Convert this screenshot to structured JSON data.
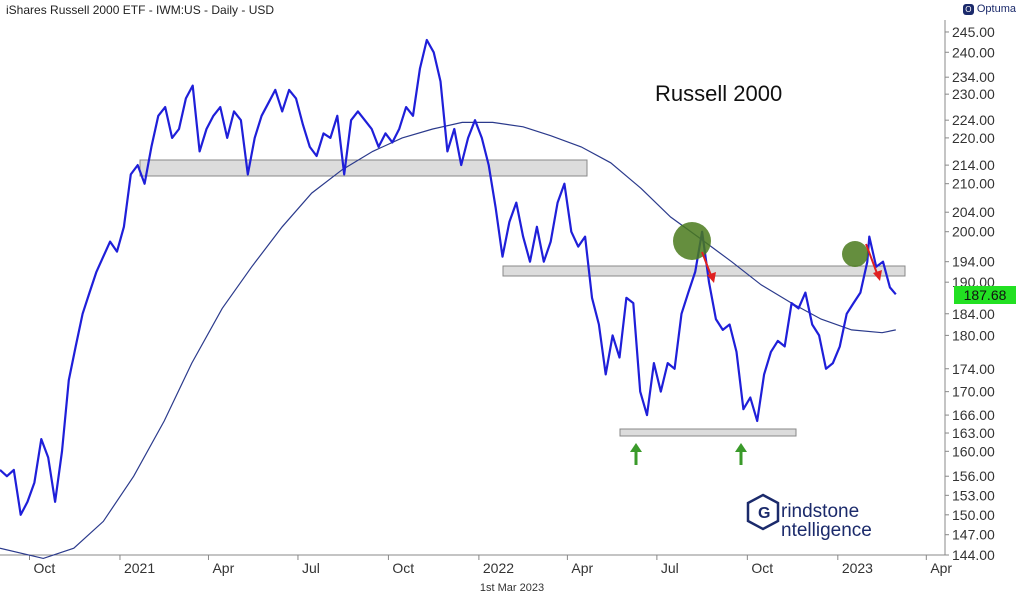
{
  "header": {
    "title": "iShares Russell 2000 ETF - IWM:US - Daily - USD",
    "logo_text": "Optuma"
  },
  "footer": {
    "date": "1st Mar 2023"
  },
  "brand": {
    "line1": "rindstone",
    "line2": "ntelligence"
  },
  "colors": {
    "price": "#1f1fd9",
    "ma": "#2b3a8c",
    "band_fill": "#dcdcdc",
    "band_stroke": "#888888",
    "circle": "#4a7a1c",
    "red_arrow": "#e02020",
    "green_arrow": "#3a9a2a",
    "last_bg": "#22e022"
  },
  "chart_data": {
    "type": "line",
    "annotation": "Russell 2000",
    "last_value": "187.68",
    "x_range": [
      "2020-09-01",
      "2023-04-20"
    ],
    "ylim": [
      144,
      248
    ],
    "y_ticks": [
      "245.00",
      "240.00",
      "234.00",
      "230.00",
      "224.00",
      "220.00",
      "214.00",
      "210.00",
      "204.00",
      "200.00",
      "194.00",
      "190.00",
      "184.00",
      "180.00",
      "174.00",
      "170.00",
      "166.00",
      "163.00",
      "160.00",
      "156.00",
      "153.00",
      "150.00",
      "147.00",
      "144.00"
    ],
    "x_ticks": [
      {
        "label": "Oct",
        "date": "2020-10-01"
      },
      {
        "label": "2021",
        "date": "2021-01-01"
      },
      {
        "label": "Apr",
        "date": "2021-04-01"
      },
      {
        "label": "Jul",
        "date": "2021-07-01"
      },
      {
        "label": "Oct",
        "date": "2021-10-01"
      },
      {
        "label": "2022",
        "date": "2022-01-01"
      },
      {
        "label": "Apr",
        "date": "2022-04-01"
      },
      {
        "label": "Jul",
        "date": "2022-07-01"
      },
      {
        "label": "Oct",
        "date": "2022-10-01"
      },
      {
        "label": "2023",
        "date": "2023-01-01"
      },
      {
        "label": "Apr",
        "date": "2023-04-01"
      }
    ],
    "series": [
      {
        "values": [
          [
            "2020-09-01",
            157
          ],
          [
            "2020-09-08",
            156
          ],
          [
            "2020-09-15",
            157
          ],
          [
            "2020-09-22",
            150
          ],
          [
            "2020-09-29",
            152
          ],
          [
            "2020-10-06",
            155
          ],
          [
            "2020-10-13",
            162
          ],
          [
            "2020-10-20",
            159
          ],
          [
            "2020-10-27",
            152
          ],
          [
            "2020-11-03",
            160
          ],
          [
            "2020-11-10",
            172
          ],
          [
            "2020-11-17",
            178
          ],
          [
            "2020-11-24",
            184
          ],
          [
            "2020-12-01",
            188
          ],
          [
            "2020-12-08",
            192
          ],
          [
            "2020-12-15",
            195
          ],
          [
            "2020-12-22",
            198
          ],
          [
            "2020-12-29",
            196
          ],
          [
            "2021-01-05",
            201
          ],
          [
            "2021-01-12",
            212
          ],
          [
            "2021-01-19",
            214
          ],
          [
            "2021-01-26",
            210
          ],
          [
            "2021-02-02",
            218
          ],
          [
            "2021-02-09",
            225
          ],
          [
            "2021-02-16",
            227
          ],
          [
            "2021-02-23",
            220
          ],
          [
            "2021-03-02",
            222
          ],
          [
            "2021-03-09",
            229
          ],
          [
            "2021-03-16",
            232
          ],
          [
            "2021-03-23",
            217
          ],
          [
            "2021-03-30",
            222
          ],
          [
            "2021-04-06",
            225
          ],
          [
            "2021-04-13",
            227
          ],
          [
            "2021-04-20",
            220
          ],
          [
            "2021-04-27",
            226
          ],
          [
            "2021-05-04",
            224
          ],
          [
            "2021-05-11",
            212
          ],
          [
            "2021-05-18",
            220
          ],
          [
            "2021-05-25",
            225
          ],
          [
            "2021-06-01",
            228
          ],
          [
            "2021-06-08",
            231
          ],
          [
            "2021-06-15",
            226
          ],
          [
            "2021-06-22",
            231
          ],
          [
            "2021-06-29",
            229
          ],
          [
            "2021-07-06",
            223
          ],
          [
            "2021-07-13",
            218
          ],
          [
            "2021-07-20",
            216
          ],
          [
            "2021-07-27",
            221
          ],
          [
            "2021-08-03",
            220
          ],
          [
            "2021-08-10",
            225
          ],
          [
            "2021-08-17",
            212
          ],
          [
            "2021-08-24",
            224
          ],
          [
            "2021-08-31",
            226
          ],
          [
            "2021-09-07",
            224
          ],
          [
            "2021-09-14",
            222
          ],
          [
            "2021-09-21",
            218
          ],
          [
            "2021-09-28",
            221
          ],
          [
            "2021-10-05",
            219
          ],
          [
            "2021-10-12",
            222
          ],
          [
            "2021-10-19",
            227
          ],
          [
            "2021-10-26",
            225
          ],
          [
            "2021-11-02",
            236
          ],
          [
            "2021-11-09",
            243
          ],
          [
            "2021-11-16",
            240
          ],
          [
            "2021-11-23",
            233
          ],
          [
            "2021-11-30",
            217
          ],
          [
            "2021-12-07",
            222
          ],
          [
            "2021-12-14",
            214
          ],
          [
            "2021-12-21",
            220
          ],
          [
            "2021-12-28",
            224
          ],
          [
            "2022-01-04",
            220
          ],
          [
            "2022-01-11",
            214
          ],
          [
            "2022-01-18",
            205
          ],
          [
            "2022-01-25",
            195
          ],
          [
            "2022-02-01",
            202
          ],
          [
            "2022-02-08",
            206
          ],
          [
            "2022-02-15",
            199
          ],
          [
            "2022-02-22",
            194
          ],
          [
            "2022-03-01",
            201
          ],
          [
            "2022-03-08",
            194
          ],
          [
            "2022-03-15",
            198
          ],
          [
            "2022-03-22",
            206
          ],
          [
            "2022-03-29",
            210
          ],
          [
            "2022-04-05",
            200
          ],
          [
            "2022-04-12",
            197
          ],
          [
            "2022-04-19",
            199
          ],
          [
            "2022-04-26",
            187
          ],
          [
            "2022-05-03",
            182
          ],
          [
            "2022-05-10",
            173
          ],
          [
            "2022-05-17",
            180
          ],
          [
            "2022-05-24",
            176
          ],
          [
            "2022-05-31",
            187
          ],
          [
            "2022-06-07",
            186
          ],
          [
            "2022-06-14",
            170
          ],
          [
            "2022-06-21",
            166
          ],
          [
            "2022-06-28",
            175
          ],
          [
            "2022-07-05",
            170
          ],
          [
            "2022-07-12",
            175
          ],
          [
            "2022-07-19",
            174
          ],
          [
            "2022-07-26",
            184
          ],
          [
            "2022-08-02",
            188
          ],
          [
            "2022-08-09",
            192
          ],
          [
            "2022-08-16",
            200
          ],
          [
            "2022-08-23",
            190
          ],
          [
            "2022-08-30",
            183
          ],
          [
            "2022-09-06",
            181
          ],
          [
            "2022-09-13",
            182
          ],
          [
            "2022-09-20",
            177
          ],
          [
            "2022-09-27",
            167
          ],
          [
            "2022-10-04",
            169
          ],
          [
            "2022-10-11",
            165
          ],
          [
            "2022-10-18",
            173
          ],
          [
            "2022-10-25",
            177
          ],
          [
            "2022-11-01",
            179
          ],
          [
            "2022-11-08",
            178
          ],
          [
            "2022-11-15",
            186
          ],
          [
            "2022-11-22",
            185
          ],
          [
            "2022-11-29",
            188
          ],
          [
            "2022-12-06",
            182
          ],
          [
            "2022-12-13",
            180
          ],
          [
            "2022-12-20",
            174
          ],
          [
            "2022-12-27",
            175
          ],
          [
            "2023-01-03",
            178
          ],
          [
            "2023-01-10",
            184
          ],
          [
            "2023-01-17",
            186
          ],
          [
            "2023-01-24",
            188
          ],
          [
            "2023-01-31",
            194
          ],
          [
            "2023-02-02",
            199
          ],
          [
            "2023-02-09",
            193
          ],
          [
            "2023-02-16",
            194
          ],
          [
            "2023-02-23",
            189
          ],
          [
            "2023-03-01",
            187.68
          ]
        ]
      },
      {
        "values": [
          [
            "2020-09-01",
            145
          ],
          [
            "2020-10-15",
            143.5
          ],
          [
            "2020-11-15",
            145
          ],
          [
            "2020-12-15",
            149
          ],
          [
            "2021-01-15",
            156
          ],
          [
            "2021-02-15",
            165
          ],
          [
            "2021-03-15",
            175
          ],
          [
            "2021-04-15",
            185
          ],
          [
            "2021-05-15",
            193
          ],
          [
            "2021-06-15",
            201
          ],
          [
            "2021-07-15",
            208
          ],
          [
            "2021-08-15",
            213
          ],
          [
            "2021-09-15",
            217
          ],
          [
            "2021-10-15",
            220
          ],
          [
            "2021-11-15",
            222
          ],
          [
            "2021-12-15",
            223.5
          ],
          [
            "2022-01-15",
            223.5
          ],
          [
            "2022-02-15",
            222.5
          ],
          [
            "2022-03-15",
            220.5
          ],
          [
            "2022-04-15",
            218
          ],
          [
            "2022-05-15",
            214.5
          ],
          [
            "2022-06-15",
            209
          ],
          [
            "2022-07-15",
            203
          ],
          [
            "2022-08-15",
            198.5
          ],
          [
            "2022-09-15",
            194
          ],
          [
            "2022-10-15",
            189.5
          ],
          [
            "2022-11-15",
            186
          ],
          [
            "2022-12-15",
            183
          ],
          [
            "2023-01-15",
            181
          ],
          [
            "2023-02-15",
            180.5
          ],
          [
            "2023-03-01",
            181
          ]
        ]
      }
    ]
  }
}
